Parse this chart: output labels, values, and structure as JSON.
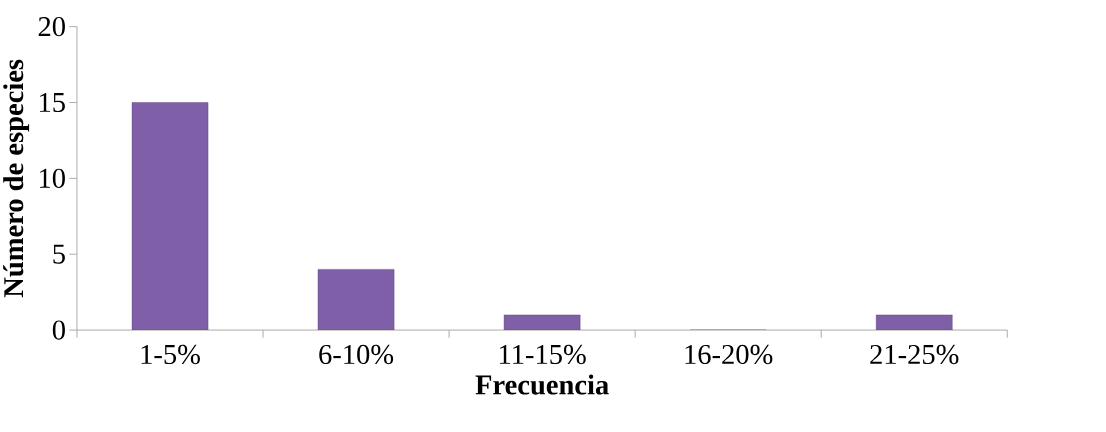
{
  "chart_data": {
    "type": "bar",
    "xlabel": "Frecuencia",
    "ylabel": "Número de especies",
    "categories": [
      "1-5%",
      "6-10%",
      "11-15%",
      "16-20%",
      "21-25%"
    ],
    "values": [
      15,
      4,
      1,
      0,
      1
    ],
    "color": "#7f5fa8",
    "ylim": [
      0,
      20
    ],
    "yticks": [
      0,
      5,
      10,
      15,
      20
    ]
  }
}
